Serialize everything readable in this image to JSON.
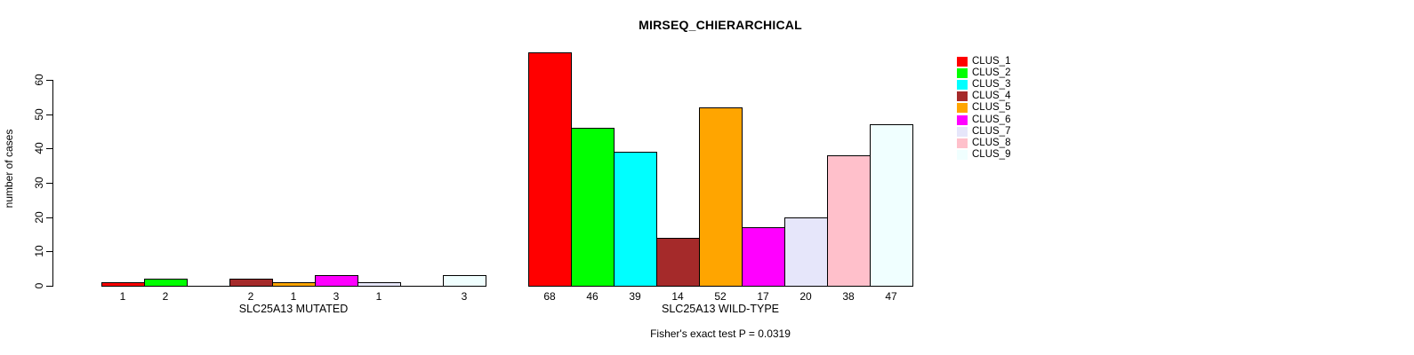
{
  "chart_data": {
    "type": "bar",
    "title": "MIRSEQ_CHIERARCHICAL",
    "ylabel": "number of cases",
    "footnote": "Fisher's exact test P = 0.0319",
    "ylim": [
      0,
      68
    ],
    "yticks": [
      0,
      10,
      20,
      30,
      40,
      50,
      60
    ],
    "grid": false,
    "legend_position": "right",
    "bar_border_color": "#000000",
    "clusters": [
      {
        "name": "CLUS_1",
        "color": "#FF0000"
      },
      {
        "name": "CLUS_2",
        "color": "#00FF00"
      },
      {
        "name": "CLUS_3",
        "color": "#00FFFF"
      },
      {
        "name": "CLUS_4",
        "color": "#A52A2A"
      },
      {
        "name": "CLUS_5",
        "color": "#FFA500"
      },
      {
        "name": "CLUS_6",
        "color": "#FF00FF"
      },
      {
        "name": "CLUS_7",
        "color": "#E6E6FA"
      },
      {
        "name": "CLUS_8",
        "color": "#FFC0CB"
      },
      {
        "name": "CLUS_9",
        "color": "#F0FFFF"
      }
    ],
    "groups": [
      {
        "label": "SLC25A13 MUTATED",
        "values": [
          1,
          2,
          0,
          2,
          1,
          3,
          1,
          0,
          3
        ]
      },
      {
        "label": "SLC25A13 WILD-TYPE",
        "values": [
          68,
          46,
          39,
          14,
          52,
          17,
          20,
          38,
          47
        ]
      }
    ]
  }
}
